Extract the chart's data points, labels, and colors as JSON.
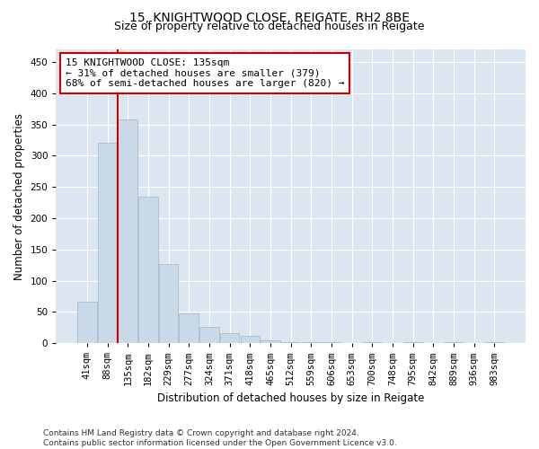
{
  "title1": "15, KNIGHTWOOD CLOSE, REIGATE, RH2 8BE",
  "title2": "Size of property relative to detached houses in Reigate",
  "xlabel": "Distribution of detached houses by size in Reigate",
  "ylabel": "Number of detached properties",
  "categories": [
    "41sqm",
    "88sqm",
    "135sqm",
    "182sqm",
    "229sqm",
    "277sqm",
    "324sqm",
    "371sqm",
    "418sqm",
    "465sqm",
    "512sqm",
    "559sqm",
    "606sqm",
    "653sqm",
    "700sqm",
    "748sqm",
    "795sqm",
    "842sqm",
    "889sqm",
    "936sqm",
    "983sqm"
  ],
  "values": [
    67,
    320,
    358,
    235,
    127,
    48,
    26,
    16,
    11,
    5,
    2,
    1,
    1,
    0,
    1,
    0,
    1,
    0,
    1,
    0,
    1
  ],
  "bar_color": "#c9d9e8",
  "bar_edge_color": "#a8bece",
  "vline_color": "#cc0000",
  "annotation_line1": "15 KNIGHTWOOD CLOSE: 135sqm",
  "annotation_line2": "← 31% of detached houses are smaller (379)",
  "annotation_line3": "68% of semi-detached houses are larger (820) →",
  "annotation_box_color": "white",
  "annotation_box_edge": "#cc0000",
  "ylim": [
    0,
    470
  ],
  "yticks": [
    0,
    50,
    100,
    150,
    200,
    250,
    300,
    350,
    400,
    450
  ],
  "background_color": "#dce6f0",
  "grid_color": "white",
  "footer": "Contains HM Land Registry data © Crown copyright and database right 2024.\nContains public sector information licensed under the Open Government Licence v3.0.",
  "title1_fontsize": 10,
  "title2_fontsize": 9,
  "xlabel_fontsize": 8.5,
  "ylabel_fontsize": 8.5,
  "tick_fontsize": 7.5,
  "annotation_fontsize": 8,
  "footer_fontsize": 6.5
}
